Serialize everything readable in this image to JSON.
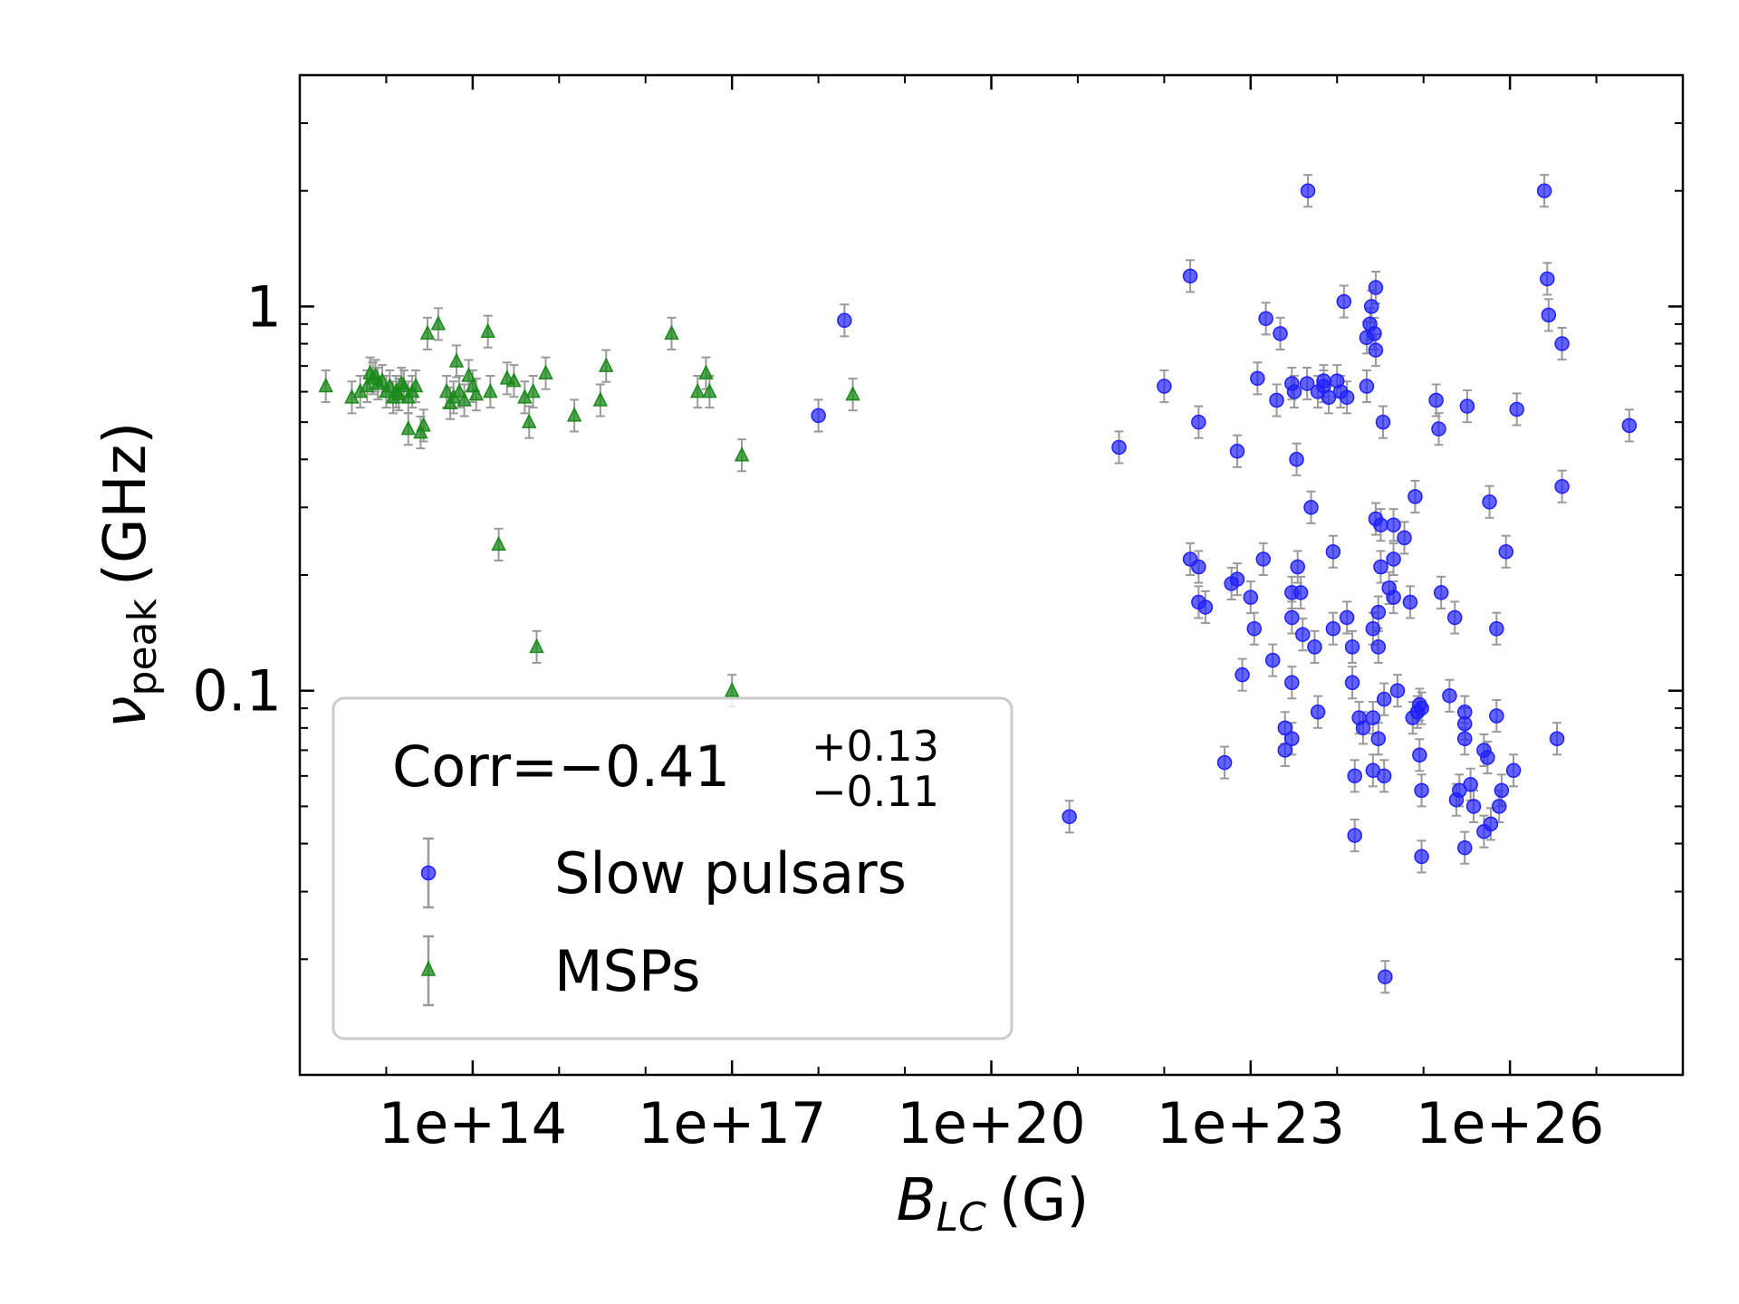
{
  "chart_data": {
    "type": "scatter",
    "title": "",
    "xlabel": {
      "main": "B",
      "sub": "LC",
      "unit": "(G)"
    },
    "ylabel": {
      "main": "ν",
      "sub": "peak",
      "unit": "(GHz)"
    },
    "x_scale": "log",
    "y_scale": "log",
    "xlim": [
      1000000000000.0,
      1e+28
    ],
    "ylim": [
      0.01,
      4
    ],
    "x_ticks": [
      {
        "value": 100000000000000.0,
        "label": "1e+14"
      },
      {
        "value": 1e+17,
        "label": "1e+17"
      },
      {
        "value": 1e+20,
        "label": "1e+20"
      },
      {
        "value": 1e+23,
        "label": "1e+23"
      },
      {
        "value": 1e+26,
        "label": "1e+26"
      }
    ],
    "y_ticks": [
      {
        "value": 1,
        "label": "1"
      },
      {
        "value": 0.1,
        "label": "0.1"
      }
    ],
    "grid": false,
    "legend": {
      "placement": "lower-left",
      "annotation": {
        "prefix": "Corr=",
        "value": "−0.41",
        "sup": "+0.13",
        "sub": "−0.11"
      },
      "entries": [
        "Slow pulsars",
        "MSPs"
      ]
    },
    "colors": {
      "slow": "#1f1fff",
      "msp": "#1a8a1a",
      "errorbar": "#9a9a9a"
    },
    "series": [
      {
        "name": "Slow pulsars",
        "marker": "circle",
        "points": [
          [
            1e+18,
            0.52
          ],
          [
            2e+18,
            0.92
          ],
          [
            8e+20,
            0.047
          ],
          [
            3e+21,
            0.43
          ],
          [
            1e+22,
            0.62
          ],
          [
            2e+22,
            1.2
          ],
          [
            2.5e+22,
            0.5
          ],
          [
            2e+22,
            0.22
          ],
          [
            2.5e+22,
            0.21
          ],
          [
            2.5e+22,
            0.17
          ],
          [
            3e+22,
            0.165
          ],
          [
            5e+22,
            0.065
          ],
          [
            6e+22,
            0.19
          ],
          [
            7e+22,
            0.195
          ],
          [
            7e+22,
            0.42
          ],
          [
            8e+22,
            0.11
          ],
          [
            1e+23,
            0.175
          ],
          [
            1.1e+23,
            0.145
          ],
          [
            1.2e+23,
            0.65
          ],
          [
            1.4e+23,
            0.22
          ],
          [
            1.5e+23,
            0.93
          ],
          [
            1.8e+23,
            0.12
          ],
          [
            2e+23,
            0.57
          ],
          [
            2.2e+23,
            0.85
          ],
          [
            2.5e+23,
            0.08
          ],
          [
            2.5e+23,
            0.07
          ],
          [
            3e+23,
            0.075
          ],
          [
            3e+23,
            0.105
          ],
          [
            3e+23,
            0.18
          ],
          [
            3e+23,
            0.155
          ],
          [
            3e+23,
            0.63
          ],
          [
            3.2e+23,
            0.6
          ],
          [
            3.4e+23,
            0.4
          ],
          [
            3.5e+23,
            0.21
          ],
          [
            3.8e+23,
            0.18
          ],
          [
            4e+23,
            0.14
          ],
          [
            4.5e+23,
            0.63
          ],
          [
            5e+23,
            0.3
          ],
          [
            5.5e+23,
            0.13
          ],
          [
            6e+23,
            0.6
          ],
          [
            6e+23,
            0.088
          ],
          [
            7e+23,
            0.64
          ],
          [
            7e+23,
            0.62
          ],
          [
            8e+23,
            0.58
          ],
          [
            9e+23,
            0.23
          ],
          [
            9e+23,
            0.145
          ],
          [
            1e+24,
            0.64
          ],
          [
            1.1e+24,
            0.6
          ],
          [
            1.2e+24,
            1.03
          ],
          [
            1.3e+24,
            0.58
          ],
          [
            1.3e+24,
            0.155
          ],
          [
            1.5e+24,
            0.13
          ],
          [
            1.5e+24,
            0.105
          ],
          [
            1.6e+24,
            0.06
          ],
          [
            1.6e+24,
            0.042
          ],
          [
            1.8e+24,
            0.085
          ],
          [
            2e+24,
            0.08
          ],
          [
            2.2e+24,
            0.62
          ],
          [
            2.4e+24,
            0.9
          ],
          [
            2.5e+24,
            1.0
          ],
          [
            2.6e+24,
            0.145
          ],
          [
            2.6e+24,
            0.085
          ],
          [
            2.6e+24,
            0.062
          ],
          [
            2.7e+24,
            0.85
          ],
          [
            2.8e+24,
            0.77
          ],
          [
            2.8e+24,
            1.12
          ],
          [
            2.8e+24,
            0.28
          ],
          [
            3e+24,
            0.16
          ],
          [
            3e+24,
            0.13
          ],
          [
            3e+24,
            0.075
          ],
          [
            3.2e+24,
            0.21
          ],
          [
            3.2e+24,
            0.27
          ],
          [
            3.4e+24,
            0.5
          ],
          [
            3.5e+24,
            0.095
          ],
          [
            3.5e+24,
            0.06
          ],
          [
            3.6e+24,
            0.018
          ],
          [
            4e+24,
            0.185
          ],
          [
            4.5e+24,
            0.27
          ],
          [
            4.5e+24,
            0.175
          ],
          [
            4.5e+24,
            0.22
          ],
          [
            5e+24,
            0.1
          ],
          [
            6e+24,
            0.25
          ],
          [
            7e+24,
            0.17
          ],
          [
            7.5e+24,
            0.085
          ],
          [
            8e+24,
            0.32
          ],
          [
            8.5e+24,
            0.088
          ],
          [
            9e+24,
            0.092
          ],
          [
            9e+24,
            0.068
          ],
          [
            9.5e+24,
            0.055
          ],
          [
            9.5e+24,
            0.037
          ],
          [
            9.5e+24,
            0.09
          ],
          [
            1.4e+25,
            0.57
          ],
          [
            1.5e+25,
            0.48
          ],
          [
            1.6e+25,
            0.18
          ],
          [
            2e+25,
            0.097
          ],
          [
            2.3e+25,
            0.155
          ],
          [
            2.4e+25,
            0.052
          ],
          [
            2.6e+25,
            0.055
          ],
          [
            3e+25,
            0.088
          ],
          [
            3e+25,
            0.082
          ],
          [
            3e+25,
            0.075
          ],
          [
            3e+25,
            0.039
          ],
          [
            3.2e+25,
            0.55
          ],
          [
            3.5e+25,
            0.057
          ],
          [
            3.8e+25,
            0.05
          ],
          [
            5e+25,
            0.07
          ],
          [
            5e+25,
            0.043
          ],
          [
            5.5e+25,
            0.067
          ],
          [
            5.8e+25,
            0.31
          ],
          [
            6e+25,
            0.045
          ],
          [
            7e+25,
            0.086
          ],
          [
            7e+25,
            0.145
          ],
          [
            7.5e+25,
            0.05
          ],
          [
            8e+25,
            0.055
          ],
          [
            9e+25,
            0.23
          ],
          [
            1.1e+26,
            0.062
          ],
          [
            1.2e+26,
            0.54
          ],
          [
            2.5e+26,
            2.0
          ],
          [
            2.7e+26,
            1.18
          ],
          [
            2.8e+26,
            0.95
          ],
          [
            3.5e+26,
            0.075
          ],
          [
            4e+26,
            0.8
          ],
          [
            4e+26,
            0.34
          ],
          [
            2.4e+27,
            0.49
          ],
          [
            2.2e+24,
            0.83
          ],
          [
            4.6e+23,
            2.0
          ]
        ]
      },
      {
        "name": "MSPs",
        "marker": "triangle",
        "points": [
          [
            2000000000000.0,
            0.62
          ],
          [
            4000000000000.0,
            0.58
          ],
          [
            5000000000000.0,
            0.6
          ],
          [
            6000000000000.0,
            0.62
          ],
          [
            6500000000000.0,
            0.67
          ],
          [
            7000000000000.0,
            0.65
          ],
          [
            7500000000000.0,
            0.66
          ],
          [
            8000000000000.0,
            0.63
          ],
          [
            9000000000000.0,
            0.64
          ],
          [
            10000000000000.0,
            0.6
          ],
          [
            11000000000000.0,
            0.62
          ],
          [
            12000000000000.0,
            0.58
          ],
          [
            13000000000000.0,
            0.6
          ],
          [
            14000000000000.0,
            0.59
          ],
          [
            15000000000000.0,
            0.63
          ],
          [
            16000000000000.0,
            0.62
          ],
          [
            18000000000000.0,
            0.58
          ],
          [
            18000000000000.0,
            0.48
          ],
          [
            20000000000000.0,
            0.6
          ],
          [
            22000000000000.0,
            0.62
          ],
          [
            25000000000000.0,
            0.47
          ],
          [
            27000000000000.0,
            0.49
          ],
          [
            30000000000000.0,
            0.85
          ],
          [
            40000000000000.0,
            0.9
          ],
          [
            50000000000000.0,
            0.6
          ],
          [
            55000000000000.0,
            0.56
          ],
          [
            60000000000000.0,
            0.58
          ],
          [
            65000000000000.0,
            0.72
          ],
          [
            70000000000000.0,
            0.6
          ],
          [
            80000000000000.0,
            0.57
          ],
          [
            90000000000000.0,
            0.66
          ],
          [
            100000000000000.0,
            0.62
          ],
          [
            110000000000000.0,
            0.59
          ],
          [
            150000000000000.0,
            0.86
          ],
          [
            160000000000000.0,
            0.6
          ],
          [
            200000000000000.0,
            0.24
          ],
          [
            250000000000000.0,
            0.65
          ],
          [
            300000000000000.0,
            0.64
          ],
          [
            400000000000000.0,
            0.58
          ],
          [
            450000000000000.0,
            0.5
          ],
          [
            500000000000000.0,
            0.6
          ],
          [
            550000000000000.0,
            0.13
          ],
          [
            700000000000000.0,
            0.67
          ],
          [
            1500000000000000.0,
            0.52
          ],
          [
            3000000000000000.0,
            0.57
          ],
          [
            3500000000000000.0,
            0.7
          ],
          [
            2e+16,
            0.85
          ],
          [
            4e+16,
            0.6
          ],
          [
            5e+16,
            0.67
          ],
          [
            5.5e+16,
            0.6
          ],
          [
            1e+17,
            0.1
          ],
          [
            1.3e+17,
            0.41
          ],
          [
            2.5e+18,
            0.59
          ]
        ]
      }
    ]
  }
}
